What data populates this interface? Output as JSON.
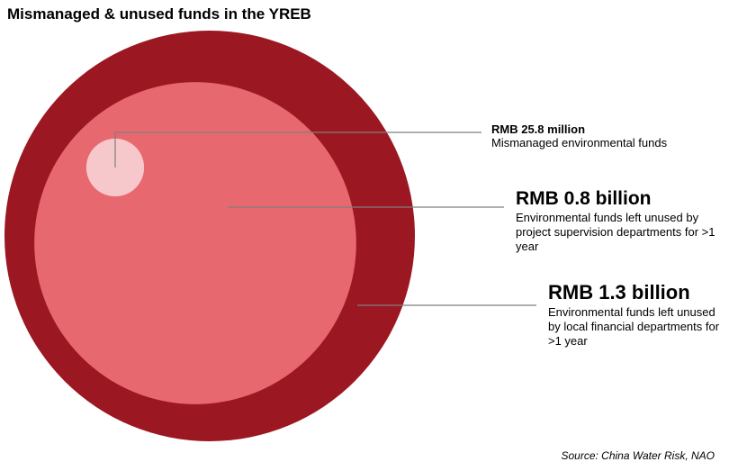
{
  "title": "Mismanaged & unused funds in the YREB",
  "source": "Source: China Water Risk, NAO",
  "colors": {
    "outer": "#9b1721",
    "middle": "#e8686f",
    "inner": "#f7c8cb",
    "leader": "#7f7f7f"
  },
  "chart_data": {
    "type": "nested-bubble",
    "unit": "RMB",
    "items": [
      {
        "amount_label": "RMB 25.8 million",
        "value": 0.0258,
        "value_unit": "billion",
        "description": "Mismanaged environmental funds",
        "color": "#f7c8cb"
      },
      {
        "amount_label": "RMB 0.8 billion",
        "value": 0.8,
        "value_unit": "billion",
        "description": "Environmental funds left unused by project supervision departments for >1 year",
        "color": "#e8686f"
      },
      {
        "amount_label": "RMB 1.3 billion",
        "value": 1.3,
        "value_unit": "billion",
        "description": "Environmental funds left unused by local financial departments  for >1 year",
        "color": "#9b1721"
      }
    ]
  }
}
